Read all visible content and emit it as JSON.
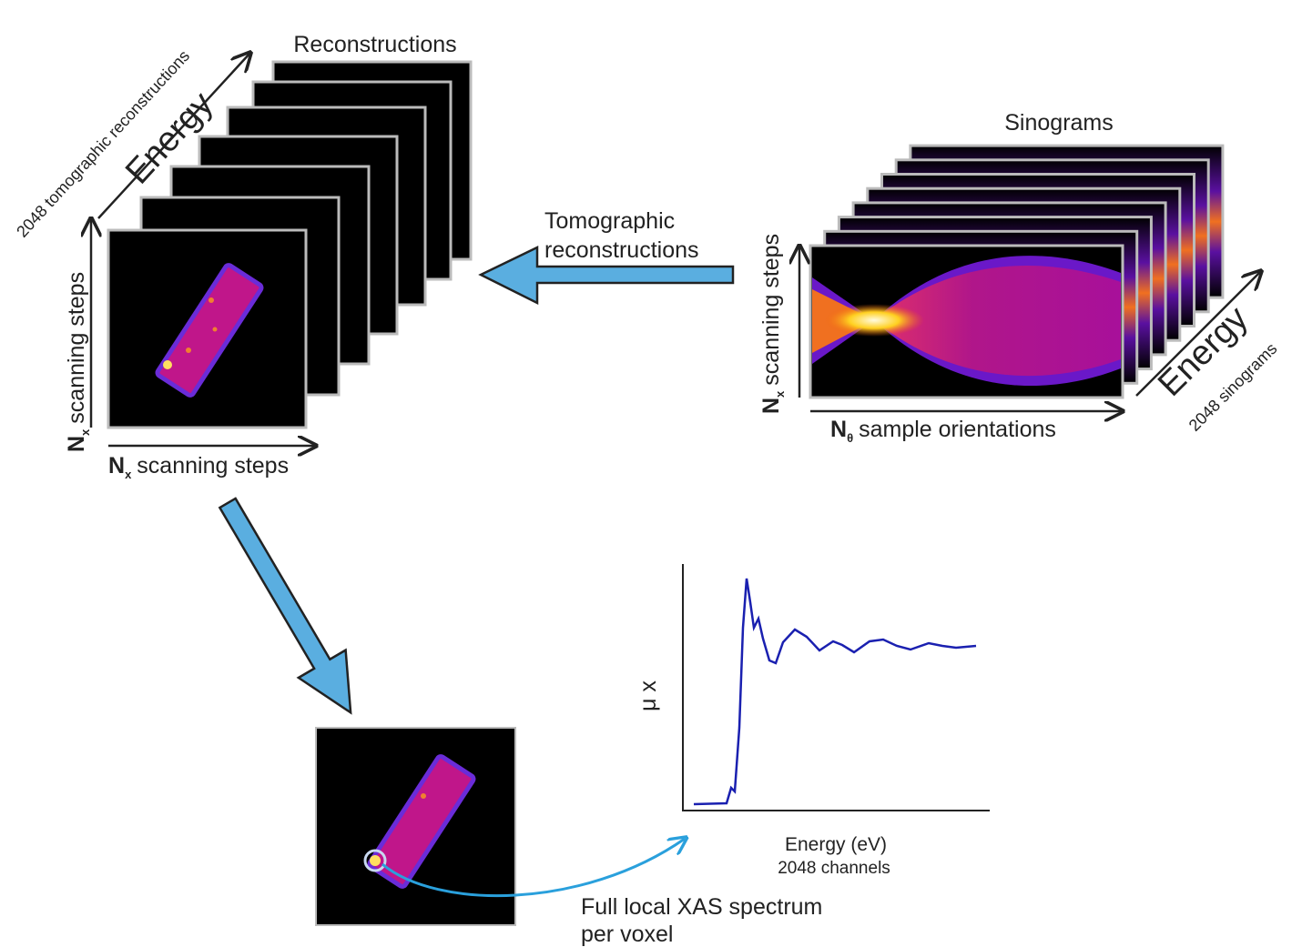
{
  "reconstructions": {
    "title": "Reconstructions",
    "energy_axis": "Energy",
    "count": "2048 tomographic reconstructions",
    "y_axis": {
      "symbol": "N",
      "subscript": "x",
      "text": "scanning steps"
    },
    "x_axis": {
      "symbol": "N",
      "subscript": "x",
      "text": "scanning steps"
    }
  },
  "transform_arrow": {
    "label_lines": [
      "Tomographic",
      "reconstructions"
    ]
  },
  "sinograms": {
    "title": "Sinograms",
    "energy_axis": "Energy",
    "count": "2048 sinograms",
    "y_axis": {
      "symbol": "N",
      "subscript": "x",
      "text": "scanning steps"
    },
    "x_axis": {
      "symbol": "N",
      "subscript": "θ",
      "text": "sample orientations"
    }
  },
  "spectrum": {
    "y_axis": "μ x",
    "x_axis": "Energy (eV)",
    "channels": "2048 channels",
    "caption_lines": [
      "Full local XAS spectrum",
      "per voxel"
    ]
  }
}
